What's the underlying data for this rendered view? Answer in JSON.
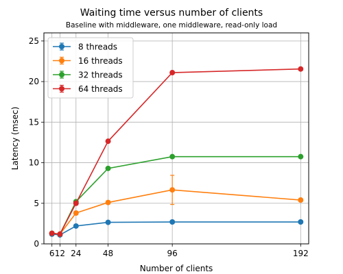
{
  "chart_data": {
    "type": "line",
    "title": "Waiting time versus number of clients",
    "subtitle": "Baseline with middleware, one middleware, read-only load",
    "xlabel": "Number of clients",
    "ylabel": "Latency (msec)",
    "x": [
      6,
      12,
      24,
      48,
      96,
      192
    ],
    "x_tick_labels": [
      "6",
      "12",
      "24",
      "48",
      "96",
      "192"
    ],
    "y_ticks": [
      0,
      5,
      10,
      15,
      20,
      25
    ],
    "xlim": [
      0,
      198
    ],
    "ylim": [
      0,
      26
    ],
    "grid": true,
    "legend_position": "top-left",
    "series": [
      {
        "name": "8 threads",
        "color": "#1f77b4",
        "values": [
          1.2,
          1.1,
          2.2,
          2.65,
          2.7,
          2.7
        ],
        "errors": [
          0.1,
          0.1,
          0.1,
          0.1,
          0.1,
          0.1
        ]
      },
      {
        "name": "16 threads",
        "color": "#ff7f0e",
        "values": [
          1.3,
          1.2,
          3.8,
          5.1,
          6.65,
          5.4
        ],
        "errors": [
          0.1,
          0.1,
          0.2,
          0.2,
          1.8,
          0.2
        ]
      },
      {
        "name": "32 threads",
        "color": "#2ca02c",
        "values": [
          1.3,
          1.2,
          5.2,
          9.3,
          10.75,
          10.75
        ],
        "errors": [
          0.1,
          0.1,
          0.2,
          0.1,
          0.1,
          0.1
        ]
      },
      {
        "name": "64 threads",
        "color": "#d62728",
        "values": [
          1.3,
          1.2,
          5.0,
          12.65,
          21.1,
          21.55
        ],
        "errors": [
          0.1,
          0.1,
          0.2,
          0.1,
          0.1,
          0.1
        ]
      }
    ]
  }
}
